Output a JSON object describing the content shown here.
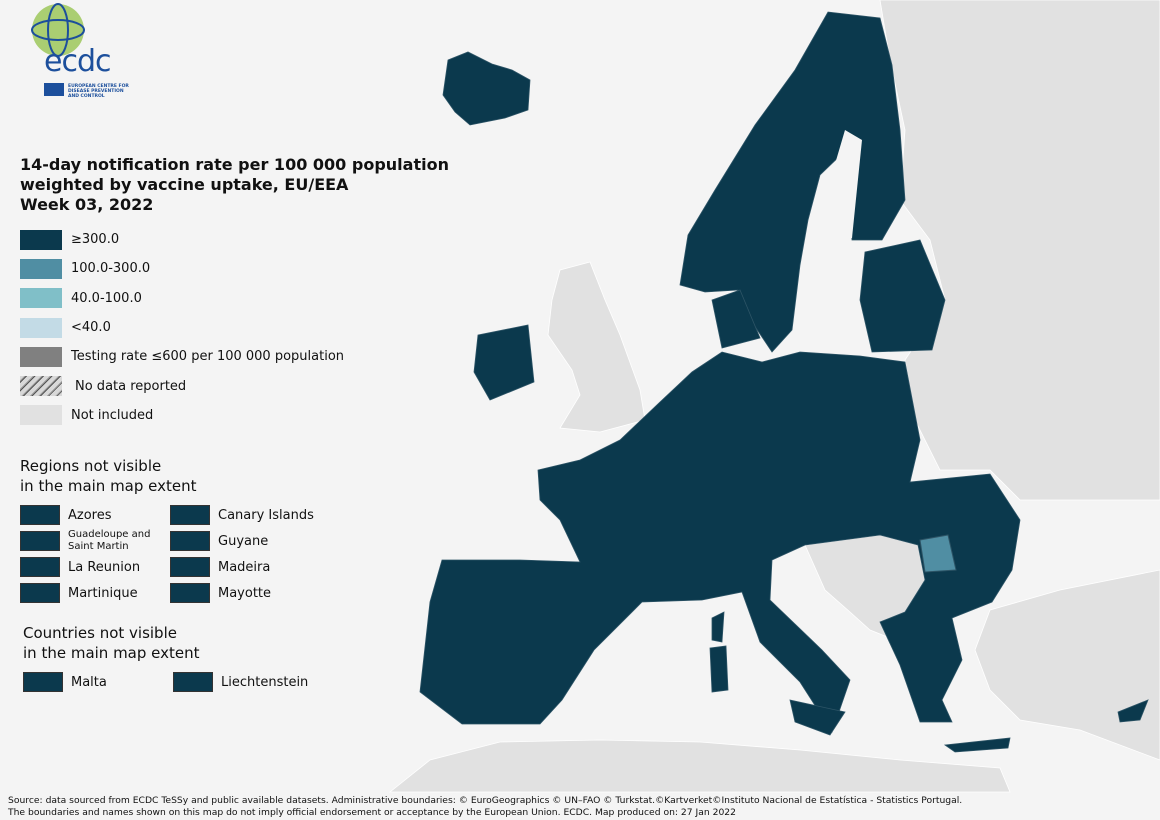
{
  "logo": {
    "name": "ecdc",
    "subtitle": [
      "EUROPEAN CENTRE FOR",
      "DISEASE PREVENTION",
      "AND CONTROL"
    ]
  },
  "title": [
    "14-day notification rate per 100 000 population",
    "weighted by vaccine uptake, EU/EEA",
    "Week 03, 2022"
  ],
  "legend": [
    {
      "label": "≥300.0",
      "color": "#0b394d"
    },
    {
      "label": "100.0-300.0",
      "color": "#508ea3"
    },
    {
      "label": "40.0-100.0",
      "color": "#80bfc8"
    },
    {
      "label": "<40.0",
      "color": "#c3dbe6"
    },
    {
      "label": "Testing rate ≤600 per 100 000 population",
      "color": "#808080"
    },
    {
      "label": "No data reported",
      "color": "#a0a0a0",
      "pattern": "hatch"
    },
    {
      "label": "Not included",
      "color": "#e1e1e1"
    }
  ],
  "regions": {
    "heading": [
      "Regions not visible",
      "in the main map extent"
    ],
    "items": [
      {
        "label": "Azores",
        "color": "#0b394d"
      },
      {
        "label": "Canary Islands",
        "color": "#0b394d"
      },
      {
        "label": "Guadeloupe and Saint Martin",
        "color": "#0b394d"
      },
      {
        "label": "Guyane",
        "color": "#0b394d"
      },
      {
        "label": "La Reunion",
        "color": "#0b394d"
      },
      {
        "label": "Madeira",
        "color": "#0b394d"
      },
      {
        "label": "Martinique",
        "color": "#0b394d"
      },
      {
        "label": "Mayotte",
        "color": "#0b394d"
      }
    ]
  },
  "countries": {
    "heading": [
      "Countries not visible",
      "in the main map extent"
    ],
    "items": [
      {
        "label": "Malta",
        "color": "#0b394d"
      },
      {
        "label": "Liechtenstein",
        "color": "#0b394d"
      }
    ]
  },
  "footer": [
    "Source: data sourced from ECDC TeSSy and public available datasets. Administrative boundaries: © EuroGeographics © UN–FAO © Turkstat.©Kartverket©Instituto Nacional de Estatística - Statistics Portugal.",
    "The boundaries and names shown on this map do not imply official endorsement or acceptance by the European Union. ECDC. Map produced on: 27 Jan 2022"
  ]
}
